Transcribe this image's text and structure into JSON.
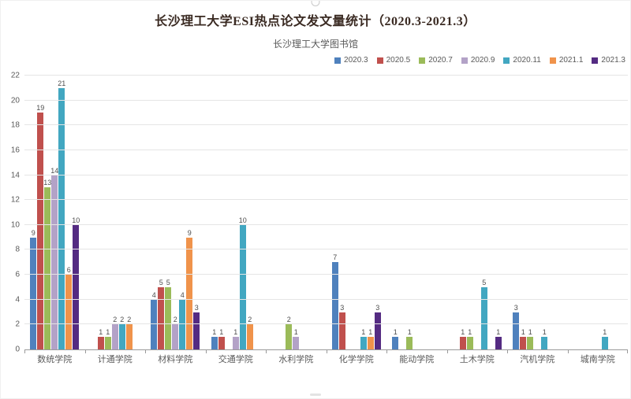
{
  "chart_data": {
    "type": "bar",
    "title": "长沙理工大学ESI热点论文发文量统计（2020.3-2021.3）",
    "subtitle": "长沙理工大学图书馆",
    "categories": [
      "数统学院",
      "计通学院",
      "材料学院",
      "交通学院",
      "水利学院",
      "化学学院",
      "能动学院",
      "土木学院",
      "汽机学院",
      "城南学院"
    ],
    "series": [
      {
        "name": "2020.3",
        "color": "#4f81bd",
        "values": [
          9,
          0,
          4,
          1,
          0,
          7,
          1,
          0,
          3,
          0
        ]
      },
      {
        "name": "2020.5",
        "color": "#c0504d",
        "values": [
          19,
          1,
          5,
          1,
          0,
          3,
          0,
          1,
          1,
          0
        ]
      },
      {
        "name": "2020.7",
        "color": "#9bbb59",
        "values": [
          13,
          1,
          5,
          0,
          2,
          0,
          1,
          1,
          1,
          0
        ]
      },
      {
        "name": "2020.9",
        "color": "#b3a2c7",
        "values": [
          14,
          2,
          2,
          1,
          1,
          0,
          0,
          0,
          0,
          0
        ]
      },
      {
        "name": "2020.11",
        "color": "#42a7c1",
        "values": [
          21,
          2,
          4,
          10,
          0,
          1,
          0,
          5,
          1,
          1
        ]
      },
      {
        "name": "2021.1",
        "color": "#f0934b",
        "values": [
          6,
          2,
          9,
          2,
          0,
          1,
          0,
          0,
          0,
          0
        ]
      },
      {
        "name": "2021.3",
        "color": "#542b82",
        "values": [
          10,
          0,
          3,
          0,
          0,
          3,
          0,
          1,
          0,
          0
        ]
      }
    ],
    "ylabel": "",
    "xlabel": "",
    "ylim": [
      0,
      22
    ],
    "ytick_step": 2,
    "grid": true,
    "legend_position": "top-right",
    "show_value_labels": true
  }
}
